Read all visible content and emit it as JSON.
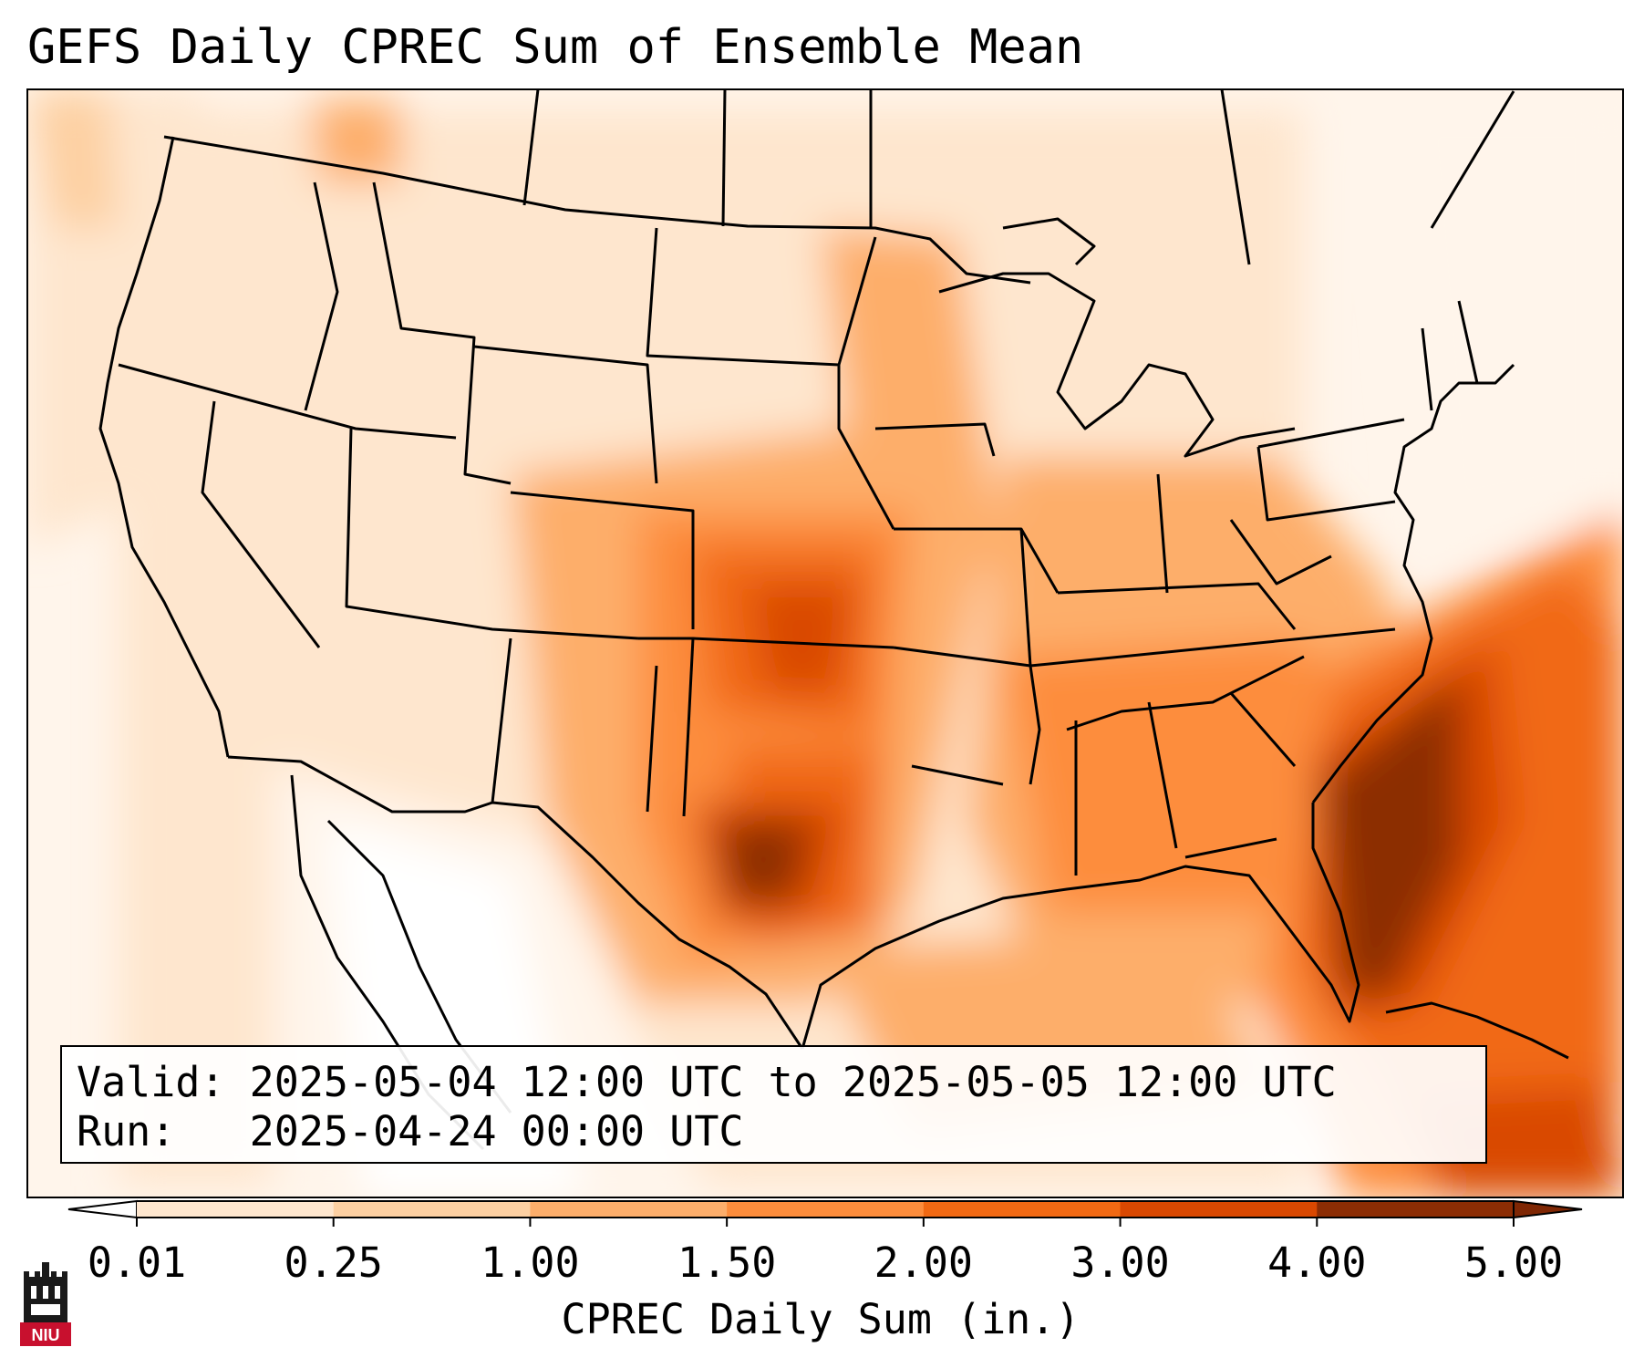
{
  "title": "GEFS Daily CPREC Sum of Ensemble Mean",
  "info": {
    "valid_label": "Valid:",
    "valid_value": "2025-05-04 12:00 UTC to 2025-05-05 12:00 UTC",
    "run_label": "Run:",
    "run_value": "2025-04-24 00:00 UTC"
  },
  "colorbar": {
    "label": "CPREC Daily Sum (in.)",
    "ticks": [
      "0.01",
      "0.25",
      "1.00",
      "1.50",
      "2.00",
      "3.00",
      "4.00",
      "5.00"
    ],
    "colors": [
      "#fff5eb",
      "#fee6ce",
      "#fdd0a2",
      "#fdae6b",
      "#fd8d3c",
      "#f16913",
      "#d94801",
      "#8c2d04"
    ],
    "under_color": "#ffffff",
    "over_color": "#7f2704",
    "extend": "both"
  },
  "logo": {
    "text": "NIU",
    "icon": "niu-castle-logo-icon"
  }
}
